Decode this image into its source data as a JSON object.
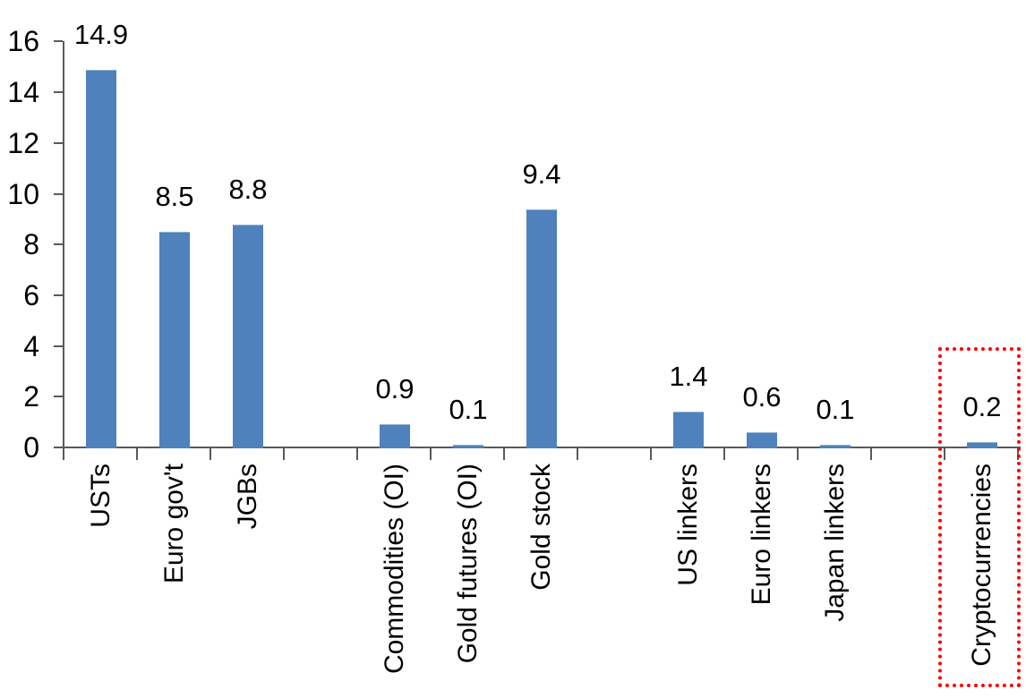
{
  "chart_data": {
    "type": "bar",
    "title": "",
    "xlabel": "",
    "ylabel": "",
    "categories": [
      "USTs",
      "Euro gov't",
      "JGBs",
      "",
      "Commodities (OI)",
      "Gold futures (OI)",
      "Gold stock",
      "",
      "US linkers",
      "Euro linkers",
      "Japan linkers",
      "",
      "Cryptocurrencies"
    ],
    "values": [
      14.9,
      8.5,
      8.8,
      null,
      0.9,
      0.1,
      9.4,
      null,
      1.4,
      0.6,
      0.1,
      null,
      0.2
    ],
    "data_labels": [
      "14.9",
      "8.5",
      "8.8",
      "",
      "0.9",
      "0.1",
      "9.4",
      "",
      "1.4",
      "0.6",
      "0.1",
      "",
      "0.2"
    ],
    "ylim": [
      0,
      16
    ],
    "yticks": [
      0,
      2,
      4,
      6,
      8,
      10,
      12,
      14,
      16
    ],
    "ytick_labels": [
      "0",
      "2",
      "4",
      "6",
      "8",
      "10",
      "12",
      "14",
      "16"
    ],
    "grid": false,
    "legend": false,
    "bar_color": "#4F81BD",
    "axis_color": "#595959",
    "text_color": "#000000",
    "highlight": {
      "category": "Cryptocurrencies",
      "slot_index": 12,
      "box_color": "#FF0000",
      "box_style": "dotted"
    }
  }
}
